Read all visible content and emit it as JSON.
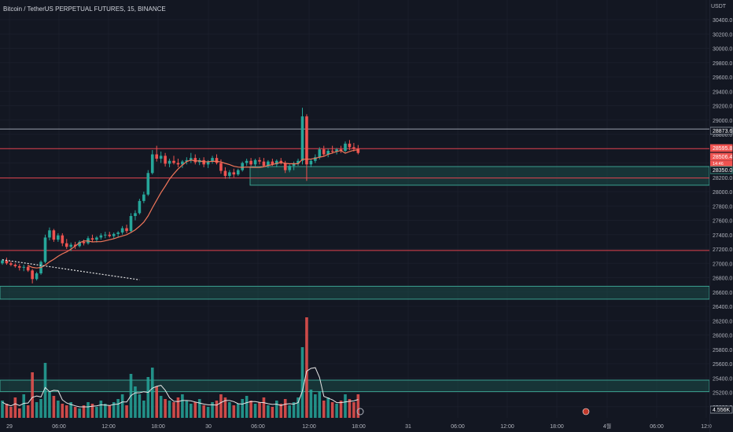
{
  "header": {
    "title": "Bitcoin / TetherUS PERPETUAL FUTURES, 15, BINANCE",
    "currency": "USDT"
  },
  "colors": {
    "background": "#131722",
    "up": "#26a69a",
    "down": "#ef5350",
    "zone_fill": "#1b4d48",
    "zone_line": "#3aa08f",
    "resistance_line": "#e2434e",
    "ma_line": "#f0765a",
    "text": "#b2b5be"
  },
  "chart_data": {
    "type": "candlestick",
    "y_axis": {
      "ticks": [
        "30400.0",
        "30200.0",
        "30000.0",
        "29800.0",
        "29600.0",
        "29400.0",
        "29200.0",
        "29000.0",
        "28800.0",
        "28600.0",
        "28400.0",
        "28200.0",
        "28000.0",
        "27800.0",
        "27600.0",
        "27400.0",
        "27200.0",
        "27000.0",
        "26800.0",
        "26600.0",
        "26400.0",
        "26200.0",
        "26000.0",
        "25800.0",
        "25600.0",
        "25400.0",
        "25200.0",
        "25000.0"
      ],
      "ylim": [
        24900,
        30500
      ]
    },
    "x_axis": {
      "ticks": [
        "29",
        "06:00",
        "12:00",
        "18:00",
        "30",
        "06:00",
        "12:00",
        "18:00",
        "31",
        "06:00",
        "12:00",
        "18:00",
        "4월",
        "06:00",
        "12:0"
      ]
    },
    "price_labels": [
      {
        "text": "28873.6",
        "style": "outline-white"
      },
      {
        "text": "28595.8",
        "style": "red"
      },
      {
        "text": "28506.4",
        "style": "red"
      },
      {
        "text": "14:46",
        "style": "red-small"
      },
      {
        "text": "28350.0",
        "style": "outline-teal"
      }
    ],
    "volume_label": "4.556K",
    "horizontal_lines": [
      {
        "price": 28873.6,
        "color": "white"
      },
      {
        "price": 28600,
        "color": "red"
      },
      {
        "price": 28190,
        "color": "red"
      },
      {
        "price": 27180,
        "color": "red"
      }
    ],
    "zones": [
      {
        "from": 28090,
        "to": 28350
      },
      {
        "from": 26500,
        "to": 26680
      },
      {
        "from": 25210,
        "to": 25370
      }
    ],
    "trendline": {
      "from": {
        "t": 0,
        "price": 27050
      },
      "to": {
        "t": 32,
        "price": 26770
      }
    },
    "candles_ohlc": [
      [
        27000,
        27060,
        26980,
        27040
      ],
      [
        27040,
        27080,
        26980,
        27000
      ],
      [
        27000,
        27030,
        26960,
        26980
      ],
      [
        26980,
        27000,
        26940,
        26960
      ],
      [
        26960,
        26990,
        26900,
        26940
      ],
      [
        26940,
        26980,
        26890,
        26950
      ],
      [
        26950,
        26980,
        26880,
        26900
      ],
      [
        26900,
        26920,
        26720,
        26780
      ],
      [
        26780,
        26880,
        26760,
        26860
      ],
      [
        26860,
        27040,
        26840,
        27020
      ],
      [
        27020,
        27400,
        27000,
        27360
      ],
      [
        27360,
        27500,
        27320,
        27460
      ],
      [
        27460,
        27480,
        27300,
        27330
      ],
      [
        27330,
        27420,
        27300,
        27390
      ],
      [
        27390,
        27420,
        27240,
        27280
      ],
      [
        27280,
        27340,
        27200,
        27230
      ],
      [
        27230,
        27290,
        27170,
        27260
      ],
      [
        27260,
        27300,
        27200,
        27240
      ],
      [
        27240,
        27320,
        27220,
        27300
      ],
      [
        27300,
        27330,
        27250,
        27280
      ],
      [
        27280,
        27380,
        27260,
        27350
      ],
      [
        27350,
        27400,
        27300,
        27330
      ],
      [
        27330,
        27380,
        27290,
        27360
      ],
      [
        27360,
        27420,
        27330,
        27390
      ],
      [
        27390,
        27440,
        27350,
        27400
      ],
      [
        27400,
        27440,
        27360,
        27380
      ],
      [
        27380,
        27430,
        27340,
        27410
      ],
      [
        27410,
        27450,
        27370,
        27430
      ],
      [
        27430,
        27520,
        27400,
        27490
      ],
      [
        27490,
        27540,
        27420,
        27450
      ],
      [
        27450,
        27700,
        27430,
        27660
      ],
      [
        27660,
        27740,
        27600,
        27700
      ],
      [
        27700,
        27900,
        27680,
        27870
      ],
      [
        27870,
        28000,
        27840,
        27960
      ],
      [
        27960,
        28300,
        27940,
        28260
      ],
      [
        28260,
        28580,
        28240,
        28520
      ],
      [
        28520,
        28640,
        28420,
        28460
      ],
      [
        28460,
        28560,
        28400,
        28500
      ],
      [
        28500,
        28540,
        28350,
        28390
      ],
      [
        28390,
        28460,
        28340,
        28430
      ],
      [
        28430,
        28500,
        28380,
        28400
      ],
      [
        28400,
        28460,
        28340,
        28380
      ],
      [
        28380,
        28440,
        28330,
        28420
      ],
      [
        28420,
        28480,
        28380,
        28440
      ],
      [
        28440,
        28540,
        28400,
        28470
      ],
      [
        28470,
        28520,
        28380,
        28410
      ],
      [
        28410,
        28470,
        28370,
        28440
      ],
      [
        28440,
        28480,
        28340,
        28380
      ],
      [
        28380,
        28440,
        28330,
        28420
      ],
      [
        28420,
        28500,
        28390,
        28470
      ],
      [
        28470,
        28520,
        28380,
        28400
      ],
      [
        28400,
        28450,
        28250,
        28290
      ],
      [
        28290,
        28340,
        28180,
        28220
      ],
      [
        28220,
        28300,
        28180,
        28270
      ],
      [
        28270,
        28320,
        28200,
        28240
      ],
      [
        28240,
        28320,
        28220,
        28300
      ],
      [
        28300,
        28420,
        28280,
        28400
      ],
      [
        28400,
        28460,
        28360,
        28430
      ],
      [
        28430,
        28470,
        28360,
        28380
      ],
      [
        28380,
        28460,
        28340,
        28440
      ],
      [
        28440,
        28480,
        28380,
        28420
      ],
      [
        28420,
        28470,
        28340,
        28360
      ],
      [
        28360,
        28440,
        28330,
        28420
      ],
      [
        28420,
        28460,
        28360,
        28380
      ],
      [
        28380,
        28450,
        28340,
        28430
      ],
      [
        28430,
        28470,
        28380,
        28400
      ],
      [
        28400,
        28430,
        28260,
        28300
      ],
      [
        28300,
        28380,
        28270,
        28360
      ],
      [
        28360,
        28420,
        28300,
        28390
      ],
      [
        28390,
        28460,
        28360,
        28430
      ],
      [
        28430,
        29170,
        28380,
        29050
      ],
      [
        29050,
        29080,
        28150,
        28380
      ],
      [
        28380,
        28460,
        28340,
        28430
      ],
      [
        28430,
        28520,
        28400,
        28480
      ],
      [
        28480,
        28620,
        28450,
        28590
      ],
      [
        28590,
        28640,
        28500,
        28520
      ],
      [
        28520,
        28600,
        28480,
        28570
      ],
      [
        28570,
        28640,
        28530,
        28560
      ],
      [
        28560,
        28610,
        28520,
        28590
      ],
      [
        28590,
        28640,
        28540,
        28570
      ],
      [
        28570,
        28700,
        28550,
        28670
      ],
      [
        28670,
        28720,
        28580,
        28620
      ],
      [
        28620,
        28680,
        28560,
        28600
      ],
      [
        28600,
        28650,
        28520,
        28540
      ]
    ]
  }
}
